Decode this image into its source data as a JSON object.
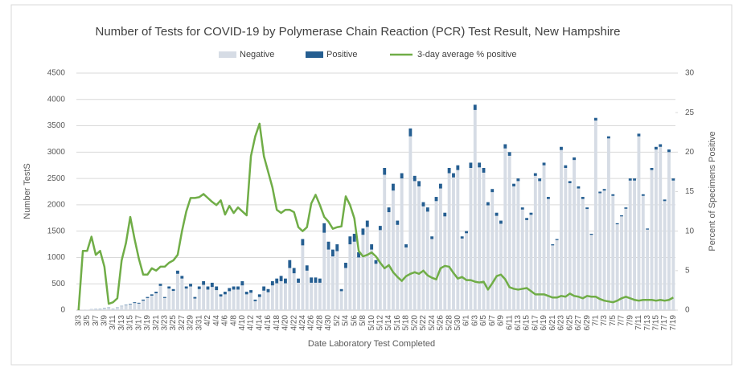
{
  "chart_data": {
    "type": "bar",
    "stacked": true,
    "title": "Number of Tests for COVID-19 by Polymerase Chain Reaction (PCR) Test Result, New Hampshire",
    "x_label": "Date Laboratory Test Completed",
    "y_label": "Number TestS",
    "y2_label": "Percent of Specimens Positive",
    "categories": [
      "3/3",
      null,
      "3/5",
      null,
      "3/7",
      null,
      "3/9",
      null,
      "3/11",
      null,
      "3/13",
      null,
      "3/15",
      null,
      "3/17",
      null,
      "3/19",
      null,
      "3/21",
      null,
      "3/23",
      null,
      "3/25",
      null,
      "3/27",
      null,
      "3/29",
      null,
      "3/31",
      null,
      "4/2",
      null,
      "4/4",
      null,
      "4/6",
      null,
      "4/8",
      null,
      "4/10",
      null,
      "4/12",
      null,
      "4/14",
      null,
      "4/16",
      null,
      "4/18",
      null,
      "4/20",
      null,
      "4/22",
      null,
      "4/24",
      null,
      "4/26",
      null,
      "4/28",
      null,
      "4/30",
      null,
      "5/2",
      null,
      "5/4",
      null,
      "5/6",
      null,
      "5/8",
      null,
      "5/10",
      null,
      "5/12",
      null,
      "5/14",
      null,
      "5/16",
      null,
      "5/18",
      null,
      "5/20",
      null,
      "5/22",
      null,
      "5/24",
      null,
      "5/26",
      null,
      "5/28",
      null,
      "5/30",
      null,
      "6/1",
      null,
      "6/3",
      null,
      "6/5",
      null,
      "6/7",
      null,
      "6/9",
      null,
      "6/11",
      null,
      "6/13",
      null,
      "6/15",
      null,
      "6/17",
      null,
      "6/19",
      null,
      "6/21",
      null,
      "6/23",
      null,
      "6/25",
      null,
      "6/27",
      null,
      "6/29",
      null,
      "7/1",
      null,
      "7/3",
      null,
      "7/5",
      null,
      "7/7",
      null,
      "7/9",
      null,
      "7/11",
      null,
      "7/13",
      null,
      "7/15",
      null,
      "7/17",
      null,
      "7/19"
    ],
    "series": [
      {
        "name": "Negative",
        "color": "#d6dce5",
        "values": [
          0,
          5,
          10,
          18,
          22,
          27,
          35,
          45,
          27,
          45,
          75,
          92,
          110,
          135,
          125,
          180,
          230,
          275,
          320,
          460,
          230,
          410,
          365,
          690,
          600,
          410,
          450,
          220,
          400,
          480,
          390,
          440,
          380,
          260,
          300,
          360,
          390,
          390,
          470,
          300,
          330,
          170,
          250,
          370,
          340,
          470,
          510,
          550,
          510,
          800,
          700,
          520,
          1230,
          750,
          520,
          520,
          520,
          1470,
          1150,
          1020,
          1120,
          360,
          800,
          1250,
          1300,
          1000,
          1430,
          1580,
          1150,
          880,
          1520,
          2570,
          1860,
          2270,
          1620,
          2500,
          1190,
          3300,
          2450,
          2350,
          1970,
          1870,
          1350,
          2070,
          2310,
          1780,
          2600,
          2520,
          2660,
          1360,
          1460,
          2700,
          3800,
          2710,
          2610,
          1990,
          2240,
          1790,
          1640,
          3070,
          2930,
          2350,
          2450,
          1910,
          1710,
          1810,
          2550,
          2450,
          2750,
          2110,
          1230,
          1330,
          3040,
          2700,
          2410,
          2850,
          2310,
          2110,
          1920,
          1430,
          3600,
          2220,
          2270,
          3260,
          2170,
          1630,
          1780,
          1925,
          2460,
          2460,
          3300,
          2170,
          1530,
          2660,
          3050,
          3100,
          2070,
          3000,
          2460
        ]
      },
      {
        "name": "Positive",
        "color": "#255e91",
        "values": [
          0,
          0,
          0,
          2,
          3,
          3,
          5,
          5,
          3,
          5,
          5,
          8,
          10,
          15,
          15,
          20,
          20,
          25,
          30,
          40,
          20,
          40,
          35,
          60,
          50,
          40,
          50,
          30,
          50,
          70,
          60,
          80,
          70,
          40,
          50,
          60,
          60,
          60,
          80,
          50,
          50,
          30,
          50,
          80,
          60,
          80,
          90,
          100,
          90,
          150,
          100,
          80,
          120,
          100,
          100,
          100,
          80,
          180,
          150,
          130,
          130,
          40,
          100,
          150,
          150,
          100,
          120,
          120,
          100,
          70,
          80,
          130,
          90,
          130,
          80,
          100,
          60,
          150,
          100,
          100,
          80,
          80,
          50,
          80,
          90,
          70,
          100,
          80,
          90,
          40,
          40,
          100,
          100,
          90,
          90,
          60,
          60,
          60,
          60,
          80,
          70,
          50,
          50,
          40,
          40,
          40,
          50,
          50,
          50,
          40,
          20,
          20,
          60,
          50,
          40,
          50,
          40,
          40,
          30,
          20,
          50,
          30,
          30,
          40,
          30,
          20,
          20,
          25,
          40,
          40,
          50,
          30,
          20,
          40,
          50,
          50,
          30,
          50,
          40
        ]
      },
      {
        "name": "3-day average % positive",
        "color": "#70ad47",
        "axis": "y2",
        "values": [
          0,
          7.5,
          7.5,
          9.3,
          7,
          7.5,
          5.5,
          0.8,
          1,
          1.5,
          6.3,
          8.5,
          11.8,
          9,
          6.5,
          4.5,
          4.5,
          5.3,
          5,
          5.5,
          5.5,
          6,
          6.3,
          7,
          10,
          12.5,
          14.2,
          14.2,
          14.3,
          14.7,
          14.2,
          13.7,
          13.3,
          13.9,
          12.1,
          13.2,
          12.3,
          13,
          12.5,
          12,
          19.5,
          22,
          23.6,
          19.5,
          17.5,
          15.5,
          12.7,
          12.3,
          12.7,
          12.7,
          12.4,
          10.5,
          10,
          10.5,
          13.5,
          14.6,
          13.3,
          11.8,
          11.2,
          10.3,
          10.5,
          10.6,
          14.4,
          13.3,
          11.6,
          7.5,
          6.8,
          7,
          7.3,
          6.8,
          6,
          5.3,
          5.7,
          4.8,
          4.2,
          3.7,
          4.3,
          4.6,
          4.8,
          4.6,
          5,
          4.4,
          4.1,
          3.9,
          5.3,
          5.6,
          5.5,
          4.7,
          4,
          4.2,
          3.8,
          3.8,
          3.6,
          3.5,
          3.6,
          2.6,
          3.4,
          4.3,
          4.5,
          3.9,
          2.9,
          2.7,
          2.6,
          2.7,
          2.8,
          2.4,
          2,
          2,
          2,
          1.8,
          1.6,
          1.6,
          1.8,
          1.7,
          2.1,
          1.8,
          1.7,
          1.5,
          1.8,
          1.7,
          1.7,
          1.4,
          1.2,
          1.1,
          1,
          1.2,
          1.5,
          1.7,
          1.5,
          1.3,
          1.2,
          1.3,
          1.3,
          1.3,
          1.2,
          1.3,
          1.2,
          1.3,
          1.6
        ]
      }
    ],
    "ylim": [
      0,
      4500
    ],
    "yticks": [
      0,
      500,
      1000,
      1500,
      2000,
      2500,
      3000,
      3500,
      4000,
      4500
    ],
    "y2lim": [
      0,
      30
    ],
    "y2ticks": [
      0,
      5,
      10,
      15,
      20,
      25,
      30
    ],
    "grid": true,
    "legend": "top"
  }
}
